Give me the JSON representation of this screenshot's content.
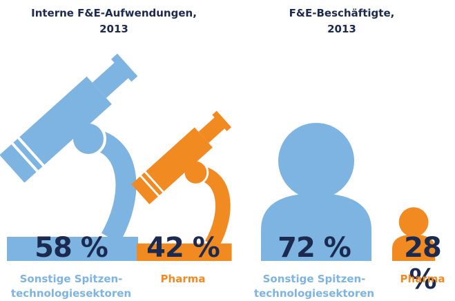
{
  "chart_data": [
    {
      "type": "pictogram",
      "icon": "microscope",
      "title": "Interne F&E-Aufwendungen,\n2013",
      "categories": [
        "Sonstige Spitzen-\ntechnologiesektoren",
        "Pharma"
      ],
      "values": [
        58,
        42
      ],
      "value_labels": [
        "58 %",
        "42 %"
      ],
      "colors": [
        "#7db4e2",
        "#f28a22"
      ]
    },
    {
      "type": "pictogram",
      "icon": "person",
      "title": "F&E-Beschäftigte,\n2013",
      "categories": [
        "Sonstige Spitzen-\ntechnologiesektoren",
        "Pharma"
      ],
      "values": [
        72,
        28
      ],
      "value_labels": [
        "72 %",
        "28 %"
      ],
      "colors": [
        "#7db4e2",
        "#f28a22"
      ]
    }
  ]
}
